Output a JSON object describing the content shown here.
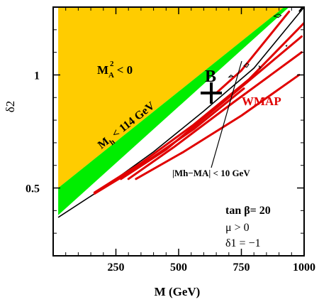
{
  "chart_data": {
    "type": "area",
    "xlabel": "M (GeV)",
    "ylabel": "δ2",
    "xlim": [
      0,
      1000
    ],
    "ylim": [
      0.2,
      1.3
    ],
    "x_ticks": [
      250,
      500,
      750,
      1000
    ],
    "x_tick_labels": [
      "250",
      "500",
      "750",
      "1000"
    ],
    "y_ticks": [
      0.5,
      1.0
    ],
    "y_tick_labels": [
      "0.5",
      "1"
    ],
    "regions": [
      {
        "name": "MA2 negative",
        "color": "#ffcc00",
        "polygon": [
          [
            20,
            1.3
          ],
          [
            20,
            0.5
          ],
          [
            920,
            1.3
          ]
        ]
      },
      {
        "name": "Mh below 114 GeV",
        "color": "#00ee00",
        "polygon": [
          [
            20,
            0.5
          ],
          [
            920,
            1.3
          ],
          [
            940,
            1.3
          ],
          [
            20,
            0.38
          ]
        ]
      }
    ],
    "boundary_line": {
      "color": "#000000",
      "points": [
        [
          20,
          0.37
        ],
        [
          200,
          0.5
        ],
        [
          400,
          0.66
        ],
        [
          600,
          0.84
        ],
        [
          800,
          1.03
        ],
        [
          1000,
          1.3
        ]
      ]
    },
    "contours": {
      "name": "WMAP",
      "color": "#e00000",
      "curves": [
        [
          [
            165,
            0.48
          ],
          [
            350,
            0.61
          ],
          [
            560,
            0.78
          ],
          [
            780,
            0.98
          ],
          [
            1000,
            1.23
          ]
        ],
        [
          [
            165,
            0.475
          ],
          [
            350,
            0.6
          ],
          [
            560,
            0.76
          ],
          [
            760,
            0.94
          ]
        ],
        [
          [
            270,
            0.54
          ],
          [
            450,
            0.67
          ],
          [
            700,
            0.9
          ],
          [
            990,
            1.17
          ]
        ],
        [
          [
            300,
            0.54
          ],
          [
            480,
            0.68
          ],
          [
            720,
            0.88
          ],
          [
            990,
            1.1
          ]
        ],
        [
          [
            330,
            0.54
          ],
          [
            520,
            0.66
          ],
          [
            750,
            0.82
          ],
          [
            980,
            1.0
          ]
        ],
        [
          [
            650,
            0.92
          ],
          [
            750,
            1.02
          ],
          [
            940,
            1.28
          ]
        ]
      ]
    },
    "benchmark": {
      "label": "B",
      "x": 630,
      "y": 0.92
    },
    "annotations": {
      "ma2": {
        "base": "M",
        "sub": "A",
        "sup": "2",
        "rest": " < 0"
      },
      "mh": {
        "base": "M",
        "sub": "h",
        "rest": " < 114 GeV"
      },
      "wmap": "WMAP",
      "mhma": "|Mh−MA| < 10 GeV"
    },
    "params": [
      "tan β= 20",
      "μ > 0",
      "δ1 = −1"
    ]
  }
}
